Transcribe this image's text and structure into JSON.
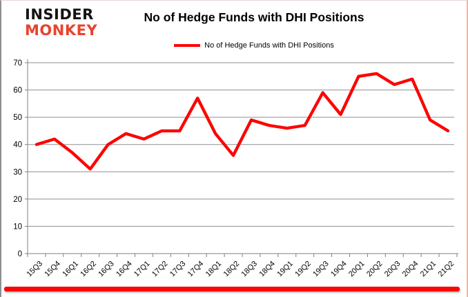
{
  "logo": {
    "line1": "INSIDER",
    "line2": "MONKEY"
  },
  "header": {
    "title": "No of Hedge Funds with DHI Positions"
  },
  "legend": {
    "label": "No of Hedge Funds with DHI Positions"
  },
  "colors": {
    "line": "#fe0000",
    "grid": "#8f8f8f",
    "axis": "#7f7f7f",
    "text": "#000000",
    "accent_bar": "#fb0505",
    "logo_black": "#141414",
    "logo_red": "#e8432d"
  },
  "chart_data": {
    "type": "line",
    "title": "No of Hedge Funds with DHI Positions",
    "categories": [
      "15Q3",
      "15Q4",
      "16Q1",
      "16Q2",
      "16Q3",
      "16Q4",
      "17Q1",
      "17Q2",
      "17Q3",
      "17Q4",
      "18Q1",
      "18Q2",
      "18Q3",
      "18Q4",
      "19Q1",
      "19Q2",
      "19Q3",
      "19Q4",
      "20Q1",
      "20Q2",
      "20Q3",
      "20Q4",
      "21Q1",
      "21Q2"
    ],
    "series": [
      {
        "name": "No of Hedge Funds with DHI Positions",
        "color": "#fe0000",
        "values": [
          40,
          42,
          37,
          31,
          40,
          44,
          42,
          45,
          45,
          57,
          44,
          36,
          49,
          47,
          46,
          47,
          59,
          51,
          65,
          66,
          62,
          64,
          49,
          45
        ]
      }
    ],
    "xlabel": "",
    "ylabel": "",
    "ylim": [
      0,
      70
    ],
    "yticks": [
      0,
      10,
      20,
      30,
      40,
      50,
      60,
      70
    ],
    "grid": true,
    "legend_position": "top"
  }
}
